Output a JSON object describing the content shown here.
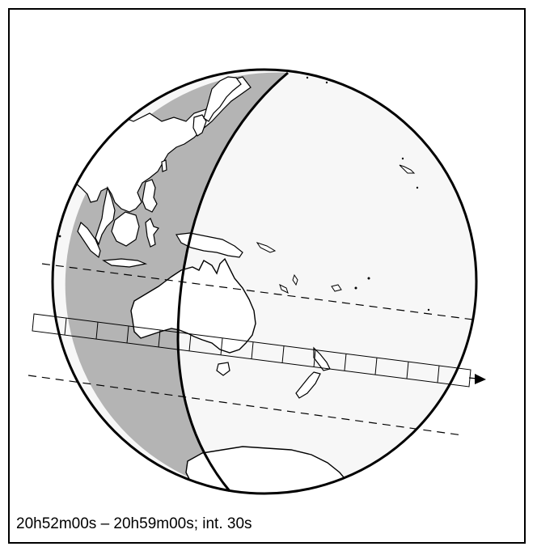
{
  "caption": "20h52m00s – 20h59m00s; int. 30s",
  "colors": {
    "night_shade": "#b4b4b4",
    "day_surface": "#f7f7f7",
    "land_on_day": "#ffffff",
    "outline": "#000000"
  },
  "icons": {
    "direction_marker": "arrowhead-right"
  }
}
